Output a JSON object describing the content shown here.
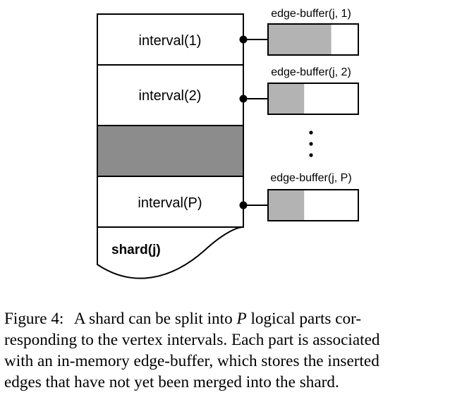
{
  "diagram": {
    "intervals": [
      {
        "label": "interval(1)"
      },
      {
        "label": "interval(2)"
      },
      {
        "label": ""
      },
      {
        "label": "interval(P)"
      }
    ],
    "shard_label": "shard(j)",
    "buffers": [
      {
        "label": "edge-buffer(j, 1)",
        "fill_fraction": 0.7
      },
      {
        "label": "edge-buffer(j, 2)",
        "fill_fraction": 0.4
      },
      {
        "label": "edge-buffer(j, P)",
        "fill_fraction": 0.4
      }
    ],
    "colors": {
      "collapsed_interval": "#8c8c8c",
      "buffer_fill": "#b3b3b3",
      "stroke": "#000000"
    }
  },
  "caption": {
    "figure_label": "Figure 4:",
    "line1": "A shard can be split into P logical parts cor-",
    "line2": "responding to the vertex intervals. Each part is associated",
    "line3": "with an in-memory edge-buffer, which stores the inserted",
    "line4": "edges that have not yet been merged into the shard."
  }
}
